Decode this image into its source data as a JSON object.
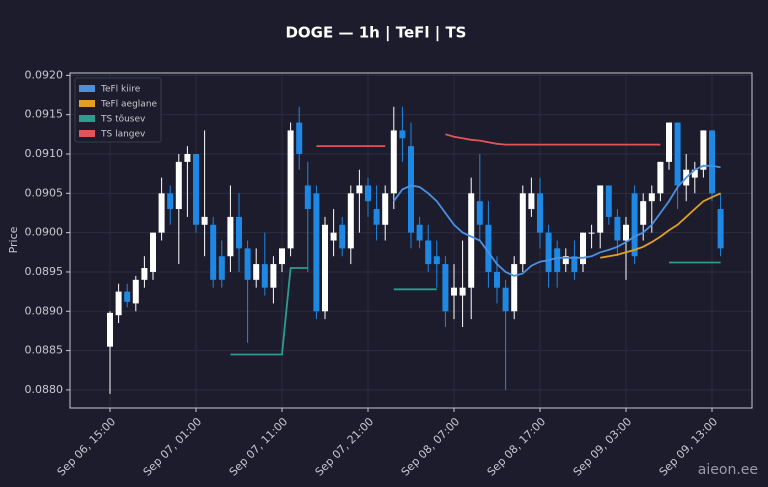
{
  "chart_data": {
    "type": "candlestick",
    "title": "DOGE — 1h  |  TeFl  |  TS",
    "y_label": "Price",
    "watermark": "aieon.ee",
    "x": [
      "Sep 06, 15:00",
      "Sep 06, 16:00",
      "Sep 06, 17:00",
      "Sep 06, 18:00",
      "Sep 06, 19:00",
      "Sep 06, 20:00",
      "Sep 06, 21:00",
      "Sep 06, 22:00",
      "Sep 06, 23:00",
      "Sep 07, 00:00",
      "Sep 07, 01:00",
      "Sep 07, 02:00",
      "Sep 07, 03:00",
      "Sep 07, 04:00",
      "Sep 07, 05:00",
      "Sep 07, 06:00",
      "Sep 07, 07:00",
      "Sep 07, 08:00",
      "Sep 07, 09:00",
      "Sep 07, 10:00",
      "Sep 07, 11:00",
      "Sep 07, 12:00",
      "Sep 07, 13:00",
      "Sep 07, 14:00",
      "Sep 07, 15:00",
      "Sep 07, 16:00",
      "Sep 07, 17:00",
      "Sep 07, 18:00",
      "Sep 07, 19:00",
      "Sep 07, 20:00",
      "Sep 07, 21:00",
      "Sep 07, 22:00",
      "Sep 07, 23:00",
      "Sep 08, 00:00",
      "Sep 08, 01:00",
      "Sep 08, 02:00",
      "Sep 08, 03:00",
      "Sep 08, 04:00",
      "Sep 08, 05:00",
      "Sep 08, 06:00",
      "Sep 08, 07:00",
      "Sep 08, 08:00",
      "Sep 08, 09:00",
      "Sep 08, 10:00",
      "Sep 08, 11:00",
      "Sep 08, 12:00",
      "Sep 08, 13:00",
      "Sep 08, 14:00",
      "Sep 08, 15:00",
      "Sep 08, 16:00",
      "Sep 08, 17:00",
      "Sep 08, 18:00",
      "Sep 08, 19:00",
      "Sep 08, 20:00",
      "Sep 08, 21:00",
      "Sep 08, 22:00",
      "Sep 08, 23:00",
      "Sep 09, 00:00",
      "Sep 09, 01:00",
      "Sep 09, 02:00",
      "Sep 09, 03:00",
      "Sep 09, 04:00",
      "Sep 09, 05:00",
      "Sep 09, 06:00",
      "Sep 09, 07:00",
      "Sep 09, 08:00",
      "Sep 09, 09:00",
      "Sep 09, 10:00",
      "Sep 09, 11:00",
      "Sep 09, 12:00",
      "Sep 09, 13:00",
      "Sep 09, 14:00"
    ],
    "open": [
      0.08855,
      0.08895,
      0.08925,
      0.0891,
      0.0894,
      0.0895,
      0.09,
      0.0905,
      0.0903,
      0.0909,
      0.091,
      0.0901,
      0.0901,
      0.0897,
      0.0897,
      0.0902,
      0.0898,
      0.0894,
      0.0896,
      0.0893,
      0.0896,
      0.0898,
      0.0914,
      0.0906,
      0.0905,
      0.089,
      0.0899,
      0.0901,
      0.0898,
      0.0905,
      0.0906,
      0.0903,
      0.0901,
      0.0905,
      0.0913,
      0.0911,
      0.0901,
      0.0899,
      0.0897,
      0.0896,
      0.0892,
      0.0892,
      0.0893,
      0.0904,
      0.0901,
      0.0895,
      0.0893,
      0.089,
      0.0896,
      0.0903,
      0.0905,
      0.09,
      0.0898,
      0.0896,
      0.0897,
      0.0896,
      0.09,
      0.09,
      0.0906,
      0.0902,
      0.0899,
      0.0905,
      0.0901,
      0.0904,
      0.0905,
      0.0909,
      0.0914,
      0.0906,
      0.0907,
      0.0908,
      0.0913,
      0.0903
    ],
    "high": [
      0.089,
      0.08935,
      0.08935,
      0.08945,
      0.0897,
      0.09,
      0.0907,
      0.0906,
      0.091,
      0.0911,
      0.091,
      0.0913,
      0.0902,
      0.0899,
      0.0906,
      0.0905,
      0.0899,
      0.0898,
      0.09,
      0.0897,
      0.0898,
      0.0914,
      0.0916,
      0.0909,
      0.0906,
      0.0902,
      0.0903,
      0.0902,
      0.0906,
      0.0908,
      0.0907,
      0.0906,
      0.0906,
      0.0916,
      0.0916,
      0.0914,
      0.0902,
      0.0901,
      0.0899,
      0.0897,
      0.0896,
      0.0899,
      0.0907,
      0.091,
      0.0904,
      0.0897,
      0.0894,
      0.0897,
      0.0906,
      0.0907,
      0.0907,
      0.0901,
      0.0899,
      0.0898,
      0.0899,
      0.09,
      0.0901,
      0.0906,
      0.0906,
      0.0903,
      0.0902,
      0.0906,
      0.0905,
      0.0906,
      0.0909,
      0.0914,
      0.0914,
      0.091,
      0.0909,
      0.0913,
      0.0913,
      0.0905
    ],
    "low": [
      0.08795,
      0.08885,
      0.08905,
      0.089,
      0.0893,
      0.0894,
      0.0899,
      0.0901,
      0.0896,
      0.0902,
      0.09,
      0.0897,
      0.0893,
      0.0893,
      0.0895,
      0.0895,
      0.0886,
      0.0893,
      0.0892,
      0.0891,
      0.0895,
      0.0897,
      0.0908,
      0.0895,
      0.0889,
      0.0889,
      0.0897,
      0.0897,
      0.0896,
      0.09,
      0.0902,
      0.0899,
      0.0899,
      0.0903,
      0.0909,
      0.0898,
      0.0898,
      0.0895,
      0.0893,
      0.0888,
      0.0889,
      0.0888,
      0.0889,
      0.0899,
      0.0893,
      0.0891,
      0.088,
      0.0889,
      0.0895,
      0.0902,
      0.0898,
      0.0893,
      0.0893,
      0.0895,
      0.0894,
      0.0895,
      0.0898,
      0.0898,
      0.0901,
      0.0897,
      0.0894,
      0.0896,
      0.0899,
      0.09,
      0.0904,
      0.0908,
      0.0903,
      0.0904,
      0.0905,
      0.0907,
      0.0904,
      0.0897
    ],
    "close": [
      0.08898,
      0.08925,
      0.08912,
      0.0894,
      0.08955,
      0.09,
      0.0905,
      0.0903,
      0.0909,
      0.091,
      0.0901,
      0.0902,
      0.0894,
      0.0894,
      0.0902,
      0.0898,
      0.0894,
      0.0896,
      0.0893,
      0.0896,
      0.0898,
      0.0913,
      0.091,
      0.0903,
      0.089,
      0.0901,
      0.09,
      0.0898,
      0.0905,
      0.0906,
      0.0904,
      0.0901,
      0.0905,
      0.0913,
      0.0912,
      0.09,
      0.0899,
      0.0896,
      0.0896,
      0.089,
      0.0893,
      0.0893,
      0.0905,
      0.0901,
      0.0895,
      0.0893,
      0.089,
      0.0896,
      0.0905,
      0.0905,
      0.09,
      0.0895,
      0.0895,
      0.0897,
      0.0895,
      0.09,
      0.09,
      0.0906,
      0.0902,
      0.0899,
      0.0901,
      0.0897,
      0.0904,
      0.0905,
      0.0909,
      0.0914,
      0.0906,
      0.0908,
      0.0908,
      0.0913,
      0.0905,
      0.0898
    ],
    "up_color": "#ffffff",
    "down_color": "#1e88e5",
    "lines": [
      {
        "name": "TeFl kiire",
        "color": "#4a90e2",
        "values": [
          null,
          null,
          null,
          null,
          null,
          null,
          null,
          null,
          null,
          null,
          null,
          null,
          null,
          null,
          null,
          null,
          null,
          null,
          null,
          null,
          null,
          null,
          null,
          null,
          null,
          null,
          null,
          null,
          null,
          null,
          null,
          null,
          null,
          0.0904,
          0.09055,
          0.0906,
          0.09058,
          0.0905,
          0.0904,
          0.09025,
          0.0901,
          0.09,
          0.08995,
          0.0899,
          0.08975,
          0.0896,
          0.0895,
          0.08945,
          0.08948,
          0.08958,
          0.08963,
          0.08965,
          0.08968,
          0.08968,
          0.08968,
          0.08968,
          0.0897,
          0.08975,
          0.08978,
          0.08982,
          0.08988,
          0.08995,
          0.09,
          0.0901,
          0.09025,
          0.0904,
          0.09058,
          0.0907,
          0.0908,
          0.09085,
          0.09085,
          0.09083
        ]
      },
      {
        "name": "TeFl aeglane",
        "color": "#e0a020",
        "values": [
          null,
          null,
          null,
          null,
          null,
          null,
          null,
          null,
          null,
          null,
          null,
          null,
          null,
          null,
          null,
          null,
          null,
          null,
          null,
          null,
          null,
          null,
          null,
          null,
          null,
          null,
          null,
          null,
          null,
          null,
          null,
          null,
          null,
          null,
          null,
          null,
          null,
          null,
          null,
          null,
          null,
          null,
          null,
          null,
          null,
          null,
          null,
          null,
          null,
          null,
          null,
          null,
          null,
          null,
          null,
          null,
          null,
          0.08968,
          0.0897,
          0.08972,
          0.08975,
          0.08978,
          0.08982,
          0.08988,
          0.08995,
          0.09003,
          0.0901,
          0.0902,
          0.0903,
          0.0904,
          0.09045,
          0.0905
        ]
      },
      {
        "name": "TS tõusev",
        "color": "#2a9d8f",
        "values": [
          null,
          null,
          null,
          null,
          null,
          null,
          null,
          null,
          null,
          null,
          null,
          null,
          null,
          null,
          0.08845,
          0.08845,
          0.08845,
          0.08845,
          0.08845,
          0.08845,
          0.08845,
          0.08955,
          0.08955,
          0.08955,
          null,
          null,
          null,
          null,
          null,
          null,
          null,
          null,
          null,
          0.08928,
          0.08928,
          0.08928,
          0.08928,
          0.08928,
          0.08928,
          null,
          null,
          null,
          null,
          null,
          null,
          null,
          null,
          null,
          null,
          null,
          null,
          null,
          null,
          null,
          null,
          null,
          null,
          null,
          null,
          null,
          null,
          null,
          null,
          null,
          null,
          0.08962,
          0.08962,
          0.08962,
          0.08962,
          0.08962,
          0.08962,
          0.08962
        ]
      },
      {
        "name": "TS langev",
        "color": "#e05555",
        "values": [
          null,
          null,
          null,
          null,
          null,
          null,
          null,
          null,
          null,
          null,
          null,
          null,
          null,
          null,
          null,
          null,
          null,
          null,
          null,
          null,
          null,
          null,
          null,
          null,
          0.0911,
          0.0911,
          0.0911,
          0.0911,
          0.0911,
          0.0911,
          0.0911,
          0.0911,
          0.0911,
          null,
          null,
          null,
          null,
          null,
          null,
          0.09125,
          0.09122,
          0.0912,
          0.09118,
          0.09117,
          0.09115,
          0.09113,
          0.09112,
          0.09112,
          0.09112,
          0.09112,
          0.09112,
          0.09112,
          0.09112,
          0.09112,
          0.09112,
          0.09112,
          0.09112,
          0.09112,
          0.09112,
          0.09112,
          0.09112,
          0.09112,
          0.09112,
          0.09112,
          0.09112,
          null,
          null,
          null,
          null,
          null,
          null,
          null
        ]
      }
    ],
    "ylim": [
      0.08777,
      0.09203
    ],
    "yticks": [
      {
        "value": 0.088,
        "label": "0.0880"
      },
      0.0885,
      {
        "value": 0.089,
        "label": "0.0890"
      },
      0.0895,
      {
        "value": 0.09,
        "label": "0.0900"
      },
      0.0905,
      {
        "value": 0.091,
        "label": "0.0910"
      },
      0.0915,
      {
        "value": 0.092,
        "label": "0.0920"
      }
    ],
    "xticks": [
      "Sep 06, 15:00",
      "Sep 07, 01:00",
      "Sep 07, 11:00",
      "Sep 07, 21:00",
      "Sep 08, 07:00",
      "Sep 08, 17:00",
      "Sep 09, 03:00",
      "Sep 09, 13:00"
    ],
    "grid": true,
    "legend": "upper left"
  }
}
